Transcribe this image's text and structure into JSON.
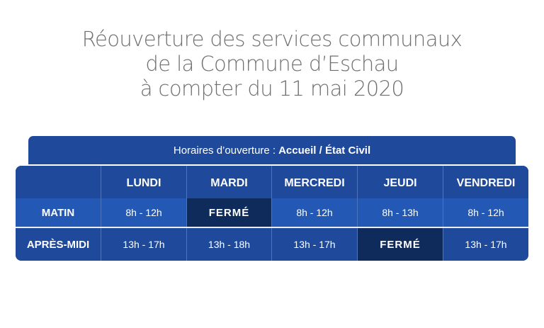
{
  "title": {
    "line1": "Réouverture des services communaux",
    "line2": "de la Commune d’Eschau",
    "line3": "à compter du 11 mai 2020"
  },
  "schedule": {
    "header_prefix": "Horaires d’ouverture :",
    "header_strong": "Accueil / État Civil",
    "days": [
      "LUNDI",
      "MARDI",
      "MERCREDI",
      "JEUDI",
      "VENDREDI"
    ],
    "rows": [
      {
        "label": "MATIN",
        "values": [
          "8h - 12h",
          "FERMÉ",
          "8h - 12h",
          "8h - 13h",
          "8h - 12h"
        ]
      },
      {
        "label": "APRÈS-MIDI",
        "values": [
          "13h - 17h",
          "13h - 18h",
          "13h - 17h",
          "FERMÉ",
          "13h - 17h"
        ]
      }
    ]
  },
  "colors": {
    "panel": "#1f4a9c",
    "morning_row": "#2358b5",
    "closed_cell": "#0f2b5c",
    "title_text": "#6f6f6f"
  }
}
